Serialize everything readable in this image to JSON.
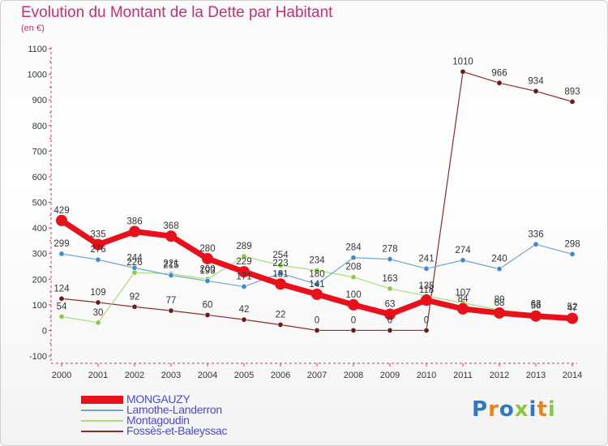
{
  "title": "Evolution du Montant de la Dette par Habitant",
  "subtitle": "(en €)",
  "logo": {
    "text": "Proxiti",
    "colors": [
      "#2e78c8",
      "#e8861c",
      "#2e78c8",
      "#8dc63f",
      "#2e78c8",
      "#e8861c",
      "#8dc63f"
    ]
  },
  "chart_data": {
    "type": "line",
    "title": "Evolution du Montant de la Dette par Habitant",
    "subtitle": "(en €)",
    "xlabel": "",
    "ylabel": "",
    "ylim": [
      -100,
      1100
    ],
    "yticks": [
      -100,
      0,
      100,
      200,
      300,
      400,
      500,
      600,
      700,
      800,
      900,
      1000,
      1100
    ],
    "x": [
      2000,
      2001,
      2002,
      2003,
      2004,
      2005,
      2006,
      2007,
      2008,
      2009,
      2010,
      2011,
      2012,
      2013,
      2014
    ],
    "grid": false,
    "legend_position": "bottom-left",
    "series": [
      {
        "name": "MONGAUZY",
        "color": "#e8101b",
        "marker": "#e8101b",
        "values": [
          429,
          335,
          386,
          368,
          280,
          229,
          181,
          141,
          100,
          63,
          118,
          84,
          68,
          56,
          47
        ],
        "labels": [
          "429",
          "335",
          "386",
          "368",
          "280",
          "229",
          "181",
          "141",
          "100",
          "63",
          "118",
          "84",
          "68",
          "56",
          "47"
        ]
      },
      {
        "name": "Lamothe-Landerron",
        "color": "#6fa4d4",
        "marker": "#3f8ad0",
        "values": [
          299,
          276,
          244,
          215,
          193,
          171,
          223,
          180,
          284,
          278,
          241,
          274,
          240,
          336,
          298
        ],
        "labels": [
          "299",
          "276",
          "244",
          "215",
          "193",
          "171",
          "223",
          "180",
          "284",
          "278",
          "241",
          "274",
          "240",
          "336",
          "298"
        ]
      },
      {
        "name": "Montagoudin",
        "color": "#a8dc7a",
        "marker": "#88cc44",
        "values": [
          54,
          30,
          226,
          221,
          200,
          289,
          254,
          234,
          208,
          163,
          135,
          107,
          80,
          63,
          52
        ],
        "labels": [
          "54",
          "30",
          "226",
          "221",
          "200",
          "289",
          "254",
          "234",
          "208",
          "163",
          "135",
          "107",
          "80",
          "63",
          "52"
        ]
      },
      {
        "name": "Fossès-et-Baleyssac",
        "color": "#8a2c2c",
        "marker": "#6b1a1a",
        "values": [
          124,
          109,
          92,
          77,
          60,
          42,
          22,
          0,
          0,
          0,
          0,
          1010,
          966,
          934,
          893
        ],
        "labels": [
          "124",
          "109",
          "92",
          "77",
          "60",
          "42",
          "22",
          "0",
          "0",
          "0",
          "0",
          "1010",
          "966",
          "934",
          "893"
        ]
      }
    ]
  }
}
